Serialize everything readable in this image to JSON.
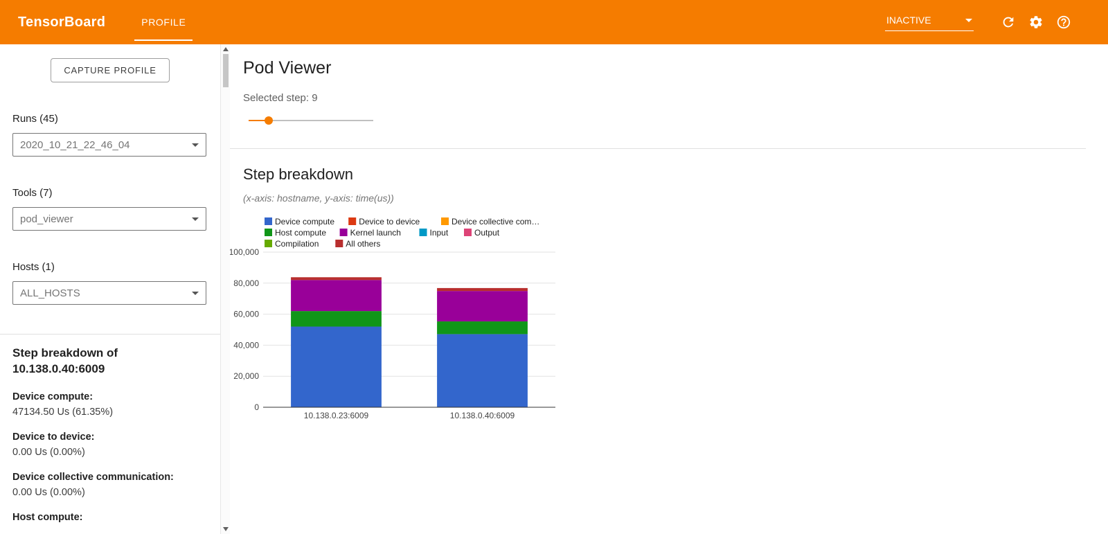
{
  "header": {
    "title": "TensorBoard",
    "tabs": [
      {
        "label": "PROFILE",
        "active": true
      }
    ],
    "status": "INACTIVE",
    "accent_color": "#f57c00"
  },
  "sidebar": {
    "capture_button_label": "CAPTURE PROFILE",
    "runs": {
      "label": "Runs (45)",
      "selected": "2020_10_21_22_46_04"
    },
    "tools": {
      "label": "Tools (7)",
      "selected": "pod_viewer"
    },
    "hosts": {
      "label": "Hosts (1)",
      "selected": "ALL_HOSTS"
    },
    "breakdown_heading": "Step breakdown of 10.138.0.40:6009",
    "stats": [
      {
        "label": "Device compute:",
        "value": "47134.50 Us (61.35%)"
      },
      {
        "label": "Device to device:",
        "value": "0.00 Us (0.00%)"
      },
      {
        "label": "Device collective communication:",
        "value": "0.00 Us (0.00%)"
      },
      {
        "label": "Host compute:",
        "value": ""
      }
    ]
  },
  "main": {
    "title": "Pod Viewer",
    "selected_step_label": "Selected step: 9",
    "selected_step": 9,
    "section_title": "Step breakdown",
    "section_subtitle": "(x-axis: hostname, y-axis: time(us))"
  },
  "chart_data": {
    "type": "bar",
    "stacked": true,
    "xlabel": "hostname",
    "ylabel": "time(us)",
    "ylim": [
      0,
      100000
    ],
    "ytick_interval": 20000,
    "grid": true,
    "legend_position": "top",
    "categories": [
      "10.138.0.23:6009",
      "10.138.0.40:6009"
    ],
    "series": [
      {
        "name": "Device compute",
        "legend": "Device compute",
        "color": "#3366cc",
        "values": [
          52000,
          47134.5
        ]
      },
      {
        "name": "Device to device",
        "legend": "Device to device",
        "color": "#dc3912",
        "values": [
          0,
          0
        ]
      },
      {
        "name": "Device collective communication",
        "legend": "Device collective com…",
        "color": "#ff9900",
        "values": [
          0,
          0
        ]
      },
      {
        "name": "Host compute",
        "legend": "Host compute",
        "color": "#109618",
        "values": [
          10000,
          8200
        ]
      },
      {
        "name": "Kernel launch",
        "legend": "Kernel launch",
        "color": "#990099",
        "values": [
          20000,
          19600
        ]
      },
      {
        "name": "Input",
        "legend": "Input",
        "color": "#0099c6",
        "values": [
          0,
          0
        ]
      },
      {
        "name": "Output",
        "legend": "Output",
        "color": "#dd4477",
        "values": [
          0,
          0
        ]
      },
      {
        "name": "Compilation",
        "legend": "Compilation",
        "color": "#66aa00",
        "values": [
          0,
          0
        ]
      },
      {
        "name": "All others",
        "legend": "All others",
        "color": "#b82e2e",
        "values": [
          1800,
          1900
        ]
      }
    ]
  }
}
